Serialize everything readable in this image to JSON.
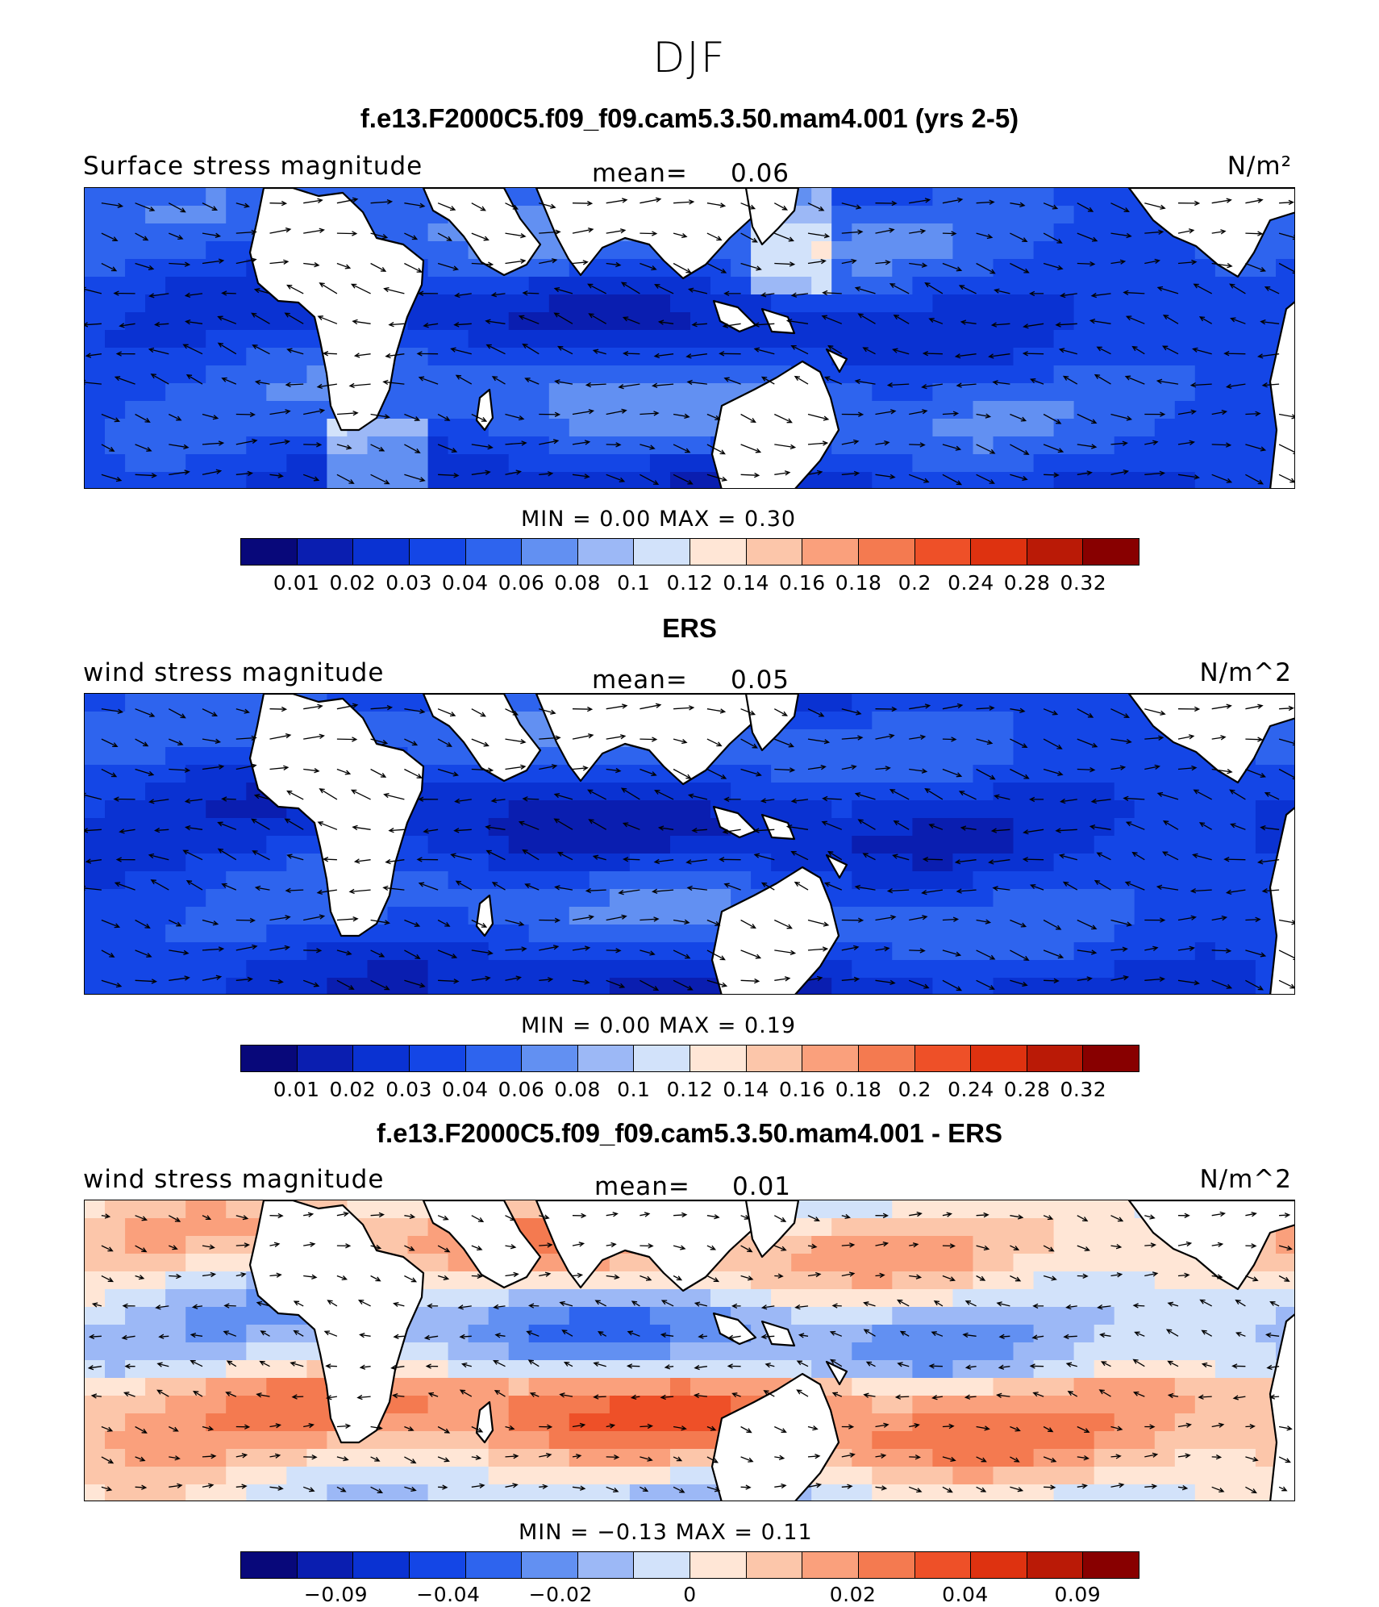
{
  "season": "DJF",
  "panels": [
    {
      "title": "f.e13.F2000C5.f09_f09.cam5.3.50.mam4.001 (yrs 2-5)",
      "variable": "Surface stress magnitude",
      "mean_label": "mean=",
      "mean_value": "0.06",
      "units": "N/m²",
      "minmax": "MIN =     0.00  MAX =     0.30",
      "field_style": "model"
    },
    {
      "title": "ERS",
      "variable": "wind stress magnitude",
      "mean_label": "mean=",
      "mean_value": "0.05",
      "units": "N/m^2",
      "minmax": "MIN =     0.00  MAX =     0.19",
      "field_style": "obs"
    },
    {
      "title": "f.e13.F2000C5.f09_f09.cam5.3.50.mam4.001 - ERS",
      "variable": "wind stress magnitude",
      "mean_label": "mean=",
      "mean_value": "0.01",
      "units": "N/m^2",
      "minmax": "MIN =   −0.13  MAX =     0.11",
      "field_style": "diff"
    }
  ],
  "colorbar": {
    "colors": [
      "#08087a",
      "#0a1eb0",
      "#0a32d2",
      "#1446e6",
      "#2e64ee",
      "#6290f2",
      "#9cb8f6",
      "#d2e2fa",
      "#ffe6d6",
      "#fcc6aa",
      "#faa07c",
      "#f47a50",
      "#ee5028",
      "#de3210",
      "#ba1a06",
      "#880000"
    ],
    "magnitude_ticks": [
      "0.01",
      "0.02",
      "0.03",
      "0.04",
      "0.06",
      "0.08",
      "0.1",
      "0.12",
      "0.14",
      "0.16",
      "0.18",
      "0.2",
      "0.24",
      "0.28",
      "0.32"
    ],
    "difference_ticks": [
      "−0.09",
      "−0.04",
      "−0.02",
      "0",
      "0.02",
      "0.04",
      "0.09"
    ]
  }
}
